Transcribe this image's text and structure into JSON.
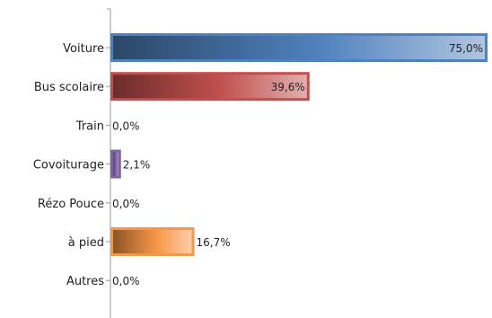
{
  "chart_data": {
    "type": "bar",
    "orientation": "horizontal",
    "categories": [
      "Voiture",
      "Bus scolaire",
      "Train",
      "Covoiturage",
      "Rézo Pouce",
      "à pied",
      "Autres"
    ],
    "values": [
      75.0,
      39.6,
      0.0,
      2.1,
      0.0,
      16.7,
      0.0
    ],
    "value_labels": [
      "75,0%",
      "39,6%",
      "0,0%",
      "2,1%",
      "0,0%",
      "16,7%",
      "0,0%"
    ],
    "colors": [
      "#4f81bd",
      "#c0504d",
      "#9bbb59",
      "#8064a2",
      "#4bacc6",
      "#f79646",
      "#2c4d75"
    ],
    "xlim": [
      0,
      75
    ],
    "grid": false,
    "legend": "none"
  }
}
